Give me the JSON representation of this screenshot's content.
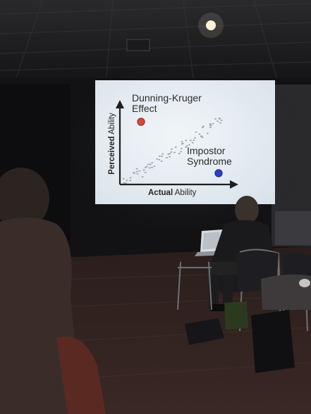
{
  "slide": {
    "dunning_kruger_line1": "Dunning-Kruger",
    "dunning_kruger_line2": "Effect",
    "impostor_line1": "Impostor",
    "impostor_line2": "Syndrome",
    "y_axis_bold": "Perceived",
    "y_axis_rest": " Ability",
    "x_axis_bold": "Actual",
    "x_axis_rest": " Ability"
  },
  "colors": {
    "dunning_kruger_dot": "#d9473a",
    "impostor_dot": "#2b3fc8",
    "slide_background": "#e9eef2",
    "trend_points": "#9aa0a6"
  }
}
